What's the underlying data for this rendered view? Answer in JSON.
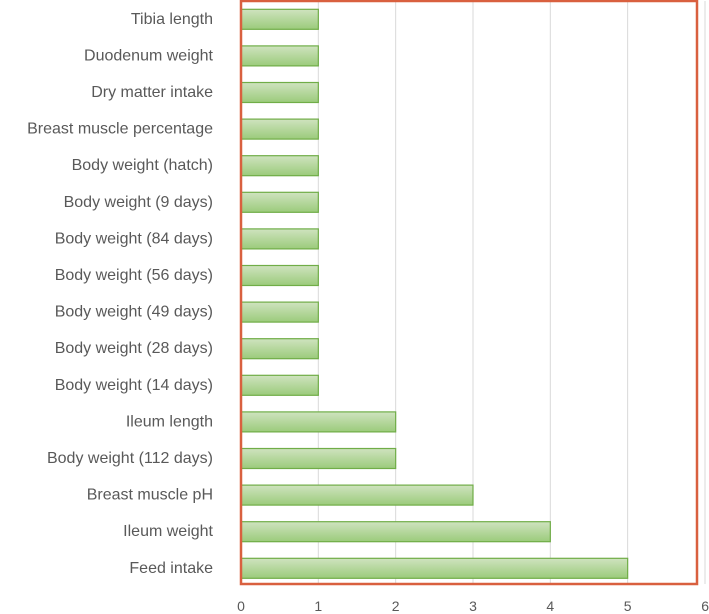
{
  "chart_data": {
    "type": "bar",
    "orientation": "horizontal",
    "categories": [
      "Tibia length",
      "Duodenum weight",
      "Dry matter intake",
      "Breast muscle percentage",
      "Body weight (hatch)",
      "Body weight (9 days)",
      "Body weight (84 days)",
      "Body weight (56 days)",
      "Body weight (49 days)",
      "Body weight (28 days)",
      "Body weight (14 days)",
      "Ileum length",
      "Body weight (112 days)",
      "Breast muscle pH",
      "Ileum weight",
      "Feed intake"
    ],
    "values": [
      1,
      1,
      1,
      1,
      1,
      1,
      1,
      1,
      1,
      1,
      1,
      2,
      2,
      3,
      4,
      5
    ],
    "title": "",
    "xlabel": "",
    "ylabel": "",
    "xlim": [
      0,
      6
    ],
    "x_ticks": [
      "0",
      "1",
      "2",
      "3",
      "4",
      "5",
      "6"
    ],
    "grid": true,
    "legend": "none",
    "colors": {
      "bar_fill_top": "#cfe3bf",
      "bar_fill_bottom": "#9bcb7b",
      "bar_stroke": "#70ad47",
      "frame": "#d9603f",
      "grid": "#d9d9d9",
      "text": "#595959"
    }
  }
}
